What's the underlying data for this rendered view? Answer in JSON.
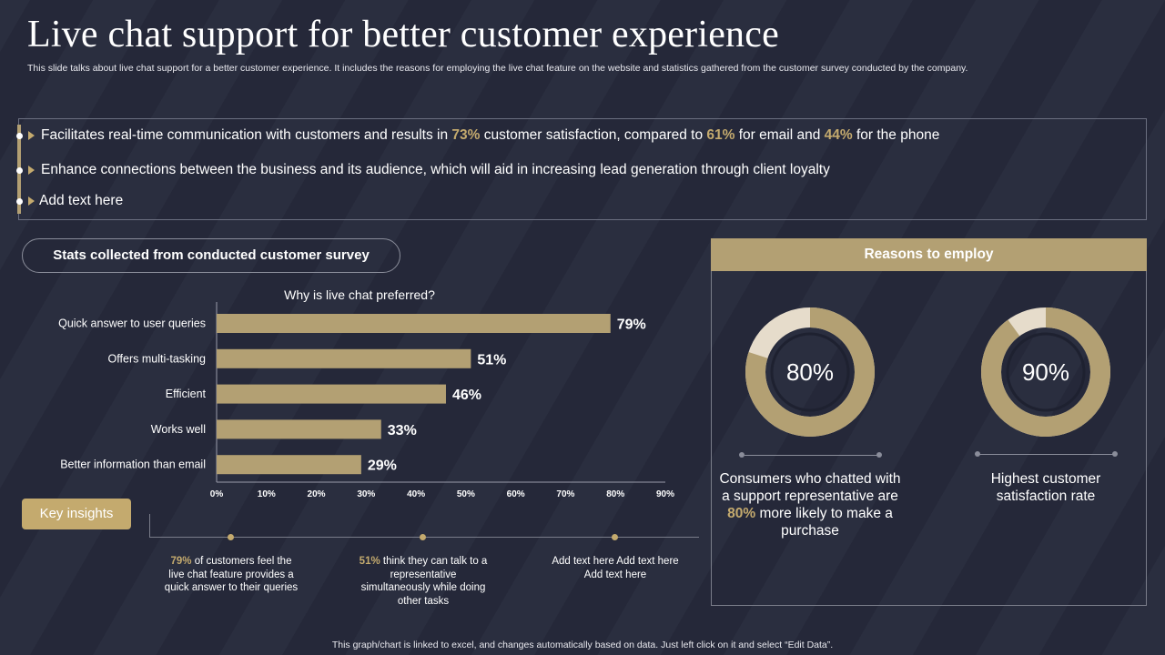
{
  "title": "Live chat support for better customer experience",
  "subtitle": "This slide talks about live chat support for a better customer experience. It includes the reasons for employing the live chat feature on the website and statistics gathered from the customer survey conducted by the company.",
  "bullets": [
    {
      "pre": "Facilitates real-time communication with customers and results in ",
      "v1": "73%",
      "mid1": " customer satisfaction, compared to ",
      "v2": "61%",
      "mid2": " for email and ",
      "v3": "44%",
      "post": " for the phone"
    },
    {
      "text": "Enhance connections between the business and its audience, which will aid in increasing lead generation through client loyalty"
    },
    {
      "text": "Add text here"
    }
  ],
  "stats_heading": "Stats collected from conducted customer survey",
  "chart_data": {
    "type": "bar",
    "orientation": "horizontal",
    "title": "Why is live chat preferred?",
    "categories": [
      "Quick answer to user queries",
      "Offers multi-tasking",
      "Efficient",
      "Works well",
      "Better information than email"
    ],
    "values": [
      79,
      51,
      46,
      33,
      29
    ],
    "data_labels": [
      "79%",
      "51%",
      "46%",
      "33%",
      "29%"
    ],
    "xlim": [
      0,
      90
    ],
    "xticks": [
      "0%",
      "10%",
      "20%",
      "30%",
      "40%",
      "50%",
      "60%",
      "70%",
      "80%",
      "90%"
    ],
    "xlabel": "",
    "ylabel": "",
    "grid": false,
    "bar_color": "#b3a073"
  },
  "key_insights": {
    "label": "Key insights",
    "items": [
      {
        "value": "79%",
        "text": " of customers feel the live chat feature provides a quick answer to their queries"
      },
      {
        "value": "51%",
        "text": " think they can talk to a representative simultaneously while doing other tasks"
      },
      {
        "value": "",
        "text": "Add text here Add text here Add text here"
      }
    ]
  },
  "reasons": {
    "heading": "Reasons to employ",
    "items": [
      {
        "percent": 80,
        "label": "80%",
        "text_pre": "Consumers who chatted with a support representative are ",
        "text_value": "80%",
        "text_post": " more likely to make a purchase"
      },
      {
        "percent": 90,
        "label": "90%",
        "text_pre": "Highest customer satisfaction rate",
        "text_value": "",
        "text_post": ""
      }
    ]
  },
  "footnote": "This graph/chart is linked to excel, and changes automatically based on data. Just left click on it and select “Edit Data”.",
  "colors": {
    "accent": "#c4aa6e",
    "bar": "#b3a073",
    "donut_rest": "#e6dccb",
    "background": "#262a3b"
  }
}
